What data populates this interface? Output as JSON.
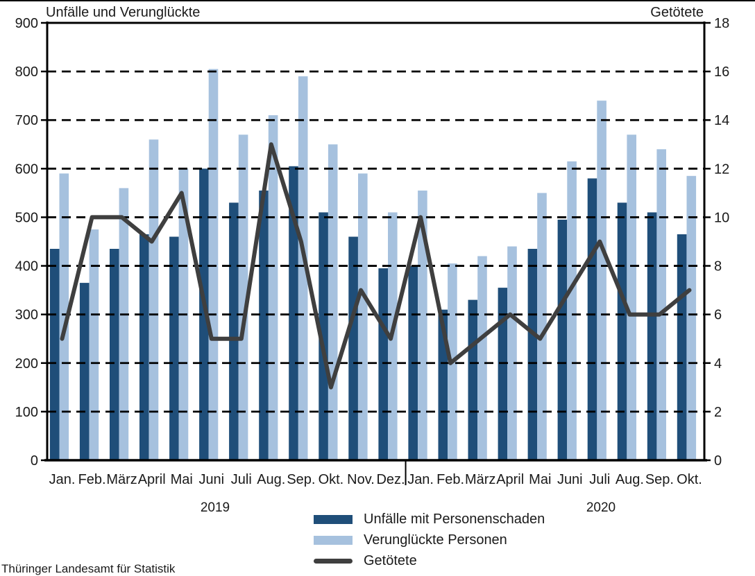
{
  "footer": {
    "source": "Thüringer Landesamt für Statistik"
  },
  "colors": {
    "accidents_bar": "#1F4E79",
    "casualties_bar": "#A6C1DE",
    "killed_line": "#3F3F3F",
    "grid": "#000000",
    "text": "#1a1a1a"
  },
  "chart_data": {
    "type": "bar",
    "subtype": "grouped bars with overlay line on secondary axis",
    "categories": [
      "Jan.",
      "Feb.",
      "März",
      "April",
      "Mai",
      "Juni",
      "Juli",
      "Aug.",
      "Sep.",
      "Okt.",
      "Nov.",
      "Dez.",
      "Jan.",
      "Feb.",
      "März",
      "April",
      "Mai",
      "Juni",
      "Juli",
      "Aug.",
      "Sep.",
      "Okt."
    ],
    "year_groups": [
      {
        "label": "2019",
        "months": 12
      },
      {
        "label": "2020",
        "months": 10
      }
    ],
    "series": [
      {
        "name": "Unfälle mit Personenschaden",
        "type": "bar",
        "axis": "left",
        "color": "#1F4E79",
        "values": [
          435,
          365,
          435,
          465,
          460,
          600,
          530,
          555,
          605,
          510,
          460,
          395,
          400,
          310,
          330,
          355,
          435,
          495,
          580,
          530,
          510,
          465
        ]
      },
      {
        "name": "Verunglückte Personen",
        "type": "bar",
        "axis": "left",
        "color": "#A6C1DE",
        "values": [
          590,
          475,
          560,
          660,
          600,
          805,
          670,
          710,
          790,
          650,
          590,
          510,
          555,
          405,
          420,
          440,
          550,
          615,
          740,
          670,
          640,
          585
        ]
      },
      {
        "name": "Getötete",
        "type": "line",
        "axis": "right",
        "color": "#3F3F3F",
        "values": [
          5,
          10,
          10,
          9,
          11,
          5,
          5,
          13,
          9,
          3,
          7,
          5,
          10,
          4,
          5,
          6,
          5,
          7,
          9,
          6,
          6,
          7
        ]
      }
    ],
    "left_axis": {
      "title": "Unfälle und Verunglückte",
      "min": 0,
      "max": 900,
      "step": 100,
      "ticks": [
        900,
        800,
        700,
        600,
        500,
        400,
        300,
        200,
        100,
        0
      ]
    },
    "right_axis": {
      "title": "Getötete",
      "min": 0,
      "max": 18,
      "step": 2,
      "ticks": [
        18,
        16,
        14,
        12,
        10,
        8,
        6,
        4,
        2,
        0
      ]
    },
    "grid": "dashed horizontal lines at every left-axis step",
    "legend_position": "bottom center"
  }
}
